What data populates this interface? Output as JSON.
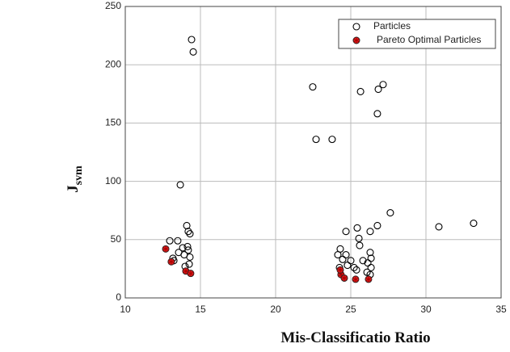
{
  "chart_data": {
    "type": "scatter",
    "xlabel": "Mis-Classificatio Ratio",
    "ylabel": "J",
    "ylabel_sub": "svm",
    "xlim": [
      10,
      35
    ],
    "xticks": [
      10,
      15,
      20,
      25,
      30,
      35
    ],
    "ylim": [
      0,
      250
    ],
    "yticks": [
      0,
      50,
      100,
      150,
      200,
      250
    ],
    "grid": true,
    "legend": "upper right",
    "series": [
      {
        "name": "Particles",
        "color": "#000000",
        "marker": "circle",
        "x": [
          14.41,
          14.52,
          13.66,
          22.47,
          22.69,
          23.76,
          27.15,
          26.83,
          25.65,
          26.77,
          27.63,
          26.77,
          26.29,
          24.68,
          25.43,
          25.54,
          25.59,
          30.86,
          33.17,
          14.09,
          14.19,
          14.3,
          13.49,
          12.96,
          13.82,
          14.19,
          14.3,
          13.55,
          13.17,
          13.98,
          14.25,
          13.92,
          14.14,
          13.23,
          24.14,
          24.3,
          24.68,
          25.0,
          24.46,
          24.78,
          25.22,
          25.38,
          24.25,
          26.29,
          26.35,
          26.13,
          26.35,
          26.08,
          26.29,
          25.81
        ],
        "values": [
          221.6,
          211,
          97,
          181,
          136,
          136,
          183,
          179,
          177,
          158,
          73,
          62,
          57,
          57,
          60,
          51,
          45,
          61,
          64,
          62,
          57,
          55,
          49,
          49,
          43,
          41,
          35,
          39,
          34,
          27,
          29,
          37,
          44,
          32,
          37,
          42,
          37,
          32,
          33,
          28,
          26,
          24,
          26,
          39,
          34,
          30,
          26,
          22,
          20,
          32
        ]
      },
      {
        "name": "Pareto Optimal Particles",
        "color": "#e02020",
        "marker": "asterisk",
        "x": [
          12.69,
          13.06,
          14.03,
          14.35,
          24.35,
          24.57,
          25.32,
          26.18,
          24.3
        ],
        "values": [
          42,
          31,
          23,
          21,
          20,
          17,
          16,
          16,
          24
        ]
      }
    ]
  }
}
